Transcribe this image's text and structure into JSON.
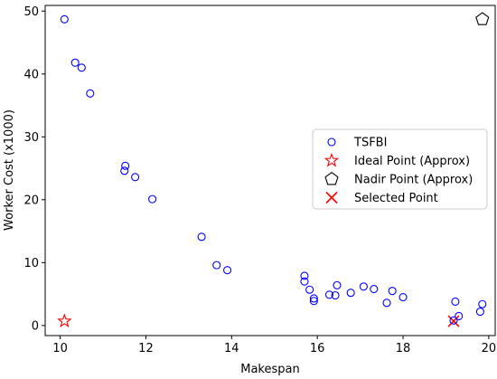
{
  "chart_data": {
    "type": "scatter",
    "title": "",
    "xlabel": "Makespan",
    "ylabel": "Worker Cost (x1000)",
    "xlim": [
      9.65,
      20.15
    ],
    "ylim": [
      -1.6,
      50.9
    ],
    "xticks": [
      10,
      12,
      14,
      16,
      18,
      20
    ],
    "yticks": [
      0,
      10,
      20,
      30,
      40,
      50
    ],
    "grid": false,
    "legend_position": "center-right",
    "series": [
      {
        "name": "TSFBI",
        "marker": "circle-open",
        "color": "#0000ff",
        "points": [
          [
            10.1,
            48.7
          ],
          [
            10.35,
            41.8
          ],
          [
            10.5,
            41.0
          ],
          [
            10.7,
            36.9
          ],
          [
            11.5,
            24.6
          ],
          [
            11.52,
            25.4
          ],
          [
            11.75,
            23.6
          ],
          [
            12.15,
            20.1
          ],
          [
            13.3,
            14.1
          ],
          [
            13.65,
            9.6
          ],
          [
            13.9,
            8.8
          ],
          [
            15.7,
            7.9
          ],
          [
            15.7,
            7.0
          ],
          [
            15.82,
            5.7
          ],
          [
            15.92,
            4.3
          ],
          [
            15.92,
            3.9
          ],
          [
            16.28,
            4.9
          ],
          [
            16.42,
            4.8
          ],
          [
            16.46,
            6.4
          ],
          [
            16.78,
            5.2
          ],
          [
            17.08,
            6.2
          ],
          [
            17.32,
            5.8
          ],
          [
            17.62,
            3.6
          ],
          [
            17.75,
            5.5
          ],
          [
            18.0,
            4.5
          ],
          [
            19.22,
            3.8
          ],
          [
            19.3,
            1.5
          ],
          [
            19.85,
            3.4
          ],
          [
            19.8,
            2.2
          ]
        ]
      },
      {
        "name": "Ideal Point (Approx)",
        "marker": "star-open",
        "color": "#ff0000",
        "points": [
          [
            10.1,
            0.7
          ]
        ]
      },
      {
        "name": "Nadir Point (Approx)",
        "marker": "pentagon-open",
        "color": "#000000",
        "points": [
          [
            19.85,
            48.7
          ]
        ]
      },
      {
        "name": "Selected Point",
        "marker": "x",
        "color": "#ff0000",
        "points": [
          [
            19.18,
            0.7
          ]
        ]
      }
    ],
    "extra_points": [
      {
        "series": "TSFBI",
        "point": [
          19.18,
          0.8
        ]
      }
    ]
  }
}
